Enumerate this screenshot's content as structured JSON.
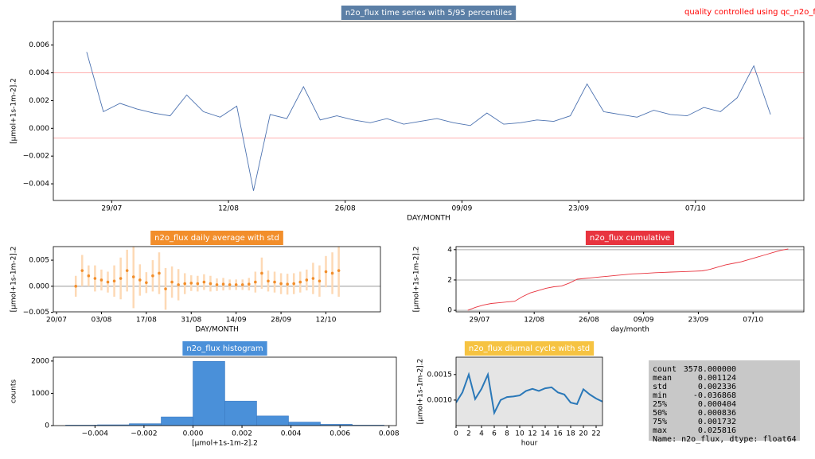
{
  "chart_data": [
    {
      "type": "line",
      "title": "n2o_flux time series with 5/95 percentiles",
      "title_color": "#5b7fa6",
      "annotation": "quality controlled using qc_n2o_fl",
      "annotation_color": "#ff0000",
      "xlabel": "DAY/MONTH",
      "ylabel": "[μmol+1s-1m-2].2",
      "color": "#4c72b0",
      "x": [
        "26/07",
        "28/07",
        "30/07",
        "01/08",
        "03/08",
        "05/08",
        "07/08",
        "09/08",
        "11/08",
        "13/08",
        "15/08",
        "17/08",
        "19/08",
        "21/08",
        "23/08",
        "25/08",
        "27/08",
        "29/08",
        "31/08",
        "02/09",
        "04/09",
        "06/09",
        "08/09",
        "10/09",
        "12/09",
        "14/09",
        "16/09",
        "18/09",
        "20/09",
        "22/09",
        "24/09",
        "26/09",
        "28/09",
        "30/09",
        "02/10",
        "04/10",
        "06/10",
        "08/10",
        "10/10",
        "12/10",
        "14/10",
        "16/10"
      ],
      "values": [
        0.0055,
        0.0012,
        0.0018,
        0.0014,
        0.0011,
        0.0009,
        0.0024,
        0.0012,
        0.0008,
        0.0016,
        -0.0045,
        0.001,
        0.0007,
        0.003,
        0.0006,
        0.0009,
        0.0006,
        0.0004,
        0.0007,
        0.0003,
        0.0005,
        0.0007,
        0.0004,
        0.0002,
        0.0011,
        0.0003,
        0.0004,
        0.0006,
        0.0005,
        0.0009,
        0.0032,
        0.0012,
        0.001,
        0.0008,
        0.0013,
        0.001,
        0.0009,
        0.0015,
        0.0012,
        0.0022,
        0.0045,
        0.001
      ],
      "xlim": [
        "22/07",
        "20/10"
      ],
      "xticks": [
        "29/07",
        "12/08",
        "26/08",
        "09/09",
        "23/09",
        "07/10"
      ],
      "ylim": [
        -0.0052,
        0.0077
      ],
      "yticks": [
        {
          "value": -0.004,
          "label": "−0.004"
        },
        {
          "value": -0.002,
          "label": "−0.002"
        },
        {
          "value": 0,
          "label": "0.000"
        },
        {
          "value": 0.002,
          "label": "0.002"
        },
        {
          "value": 0.004,
          "label": "0.004"
        },
        {
          "value": 0.006,
          "label": "0.006"
        }
      ],
      "hlines": [
        -0.0007,
        0.004
      ],
      "hline_color": "#ffb0b0",
      "grid": false
    },
    {
      "type": "errorbar",
      "title": "n2o_flux daily average with std",
      "title_color": "#f28e2b",
      "xlabel": "DAY/MONTH",
      "ylabel": "[μmol+1s-1m-2].2",
      "color": "#f28e2b",
      "error_color": "#fdd9b5",
      "x": [
        "26/07",
        "28/07",
        "30/07",
        "01/08",
        "03/08",
        "05/08",
        "07/08",
        "09/08",
        "11/08",
        "13/08",
        "15/08",
        "17/08",
        "19/08",
        "21/08",
        "23/08",
        "25/08",
        "27/08",
        "29/08",
        "31/08",
        "02/09",
        "04/09",
        "06/09",
        "08/09",
        "10/09",
        "12/09",
        "14/09",
        "16/09",
        "18/09",
        "20/09",
        "22/09",
        "24/09",
        "26/09",
        "28/09",
        "30/09",
        "02/10",
        "04/10",
        "06/10",
        "08/10",
        "10/10",
        "12/10",
        "14/10",
        "16/10"
      ],
      "values": [
        0.0,
        0.003,
        0.002,
        0.0015,
        0.0012,
        0.0008,
        0.001,
        0.0015,
        0.003,
        0.0018,
        0.0012,
        0.0007,
        0.002,
        0.0025,
        -0.0005,
        0.0008,
        0.0003,
        0.0005,
        0.0006,
        0.0005,
        0.0008,
        0.0005,
        0.0003,
        0.0004,
        0.0003,
        0.0003,
        0.0003,
        0.0004,
        0.0008,
        0.0025,
        0.001,
        0.0008,
        0.0005,
        0.0004,
        0.0005,
        0.0008,
        0.0012,
        0.0015,
        0.001,
        0.0028,
        0.0025,
        0.003
      ],
      "errors": [
        0.002,
        0.003,
        0.002,
        0.0025,
        0.002,
        0.002,
        0.003,
        0.004,
        0.004,
        0.006,
        0.003,
        0.002,
        0.003,
        0.004,
        0.004,
        0.003,
        0.003,
        0.002,
        0.0015,
        0.0015,
        0.0015,
        0.0015,
        0.0012,
        0.0012,
        0.001,
        0.001,
        0.001,
        0.0012,
        0.002,
        0.003,
        0.002,
        0.002,
        0.002,
        0.002,
        0.002,
        0.002,
        0.002,
        0.003,
        0.003,
        0.003,
        0.004,
        0.005
      ],
      "xlim": [
        "19/07",
        "29/10"
      ],
      "xticks": [
        "20/07",
        "03/08",
        "17/08",
        "31/08",
        "14/09",
        "28/09",
        "12/10"
      ],
      "ylim": [
        -0.0049,
        0.0076
      ],
      "yticks": [
        {
          "value": -0.005,
          "label": "−0.005"
        },
        {
          "value": 0,
          "label": "0.000"
        },
        {
          "value": 0.005,
          "label": "0.005"
        }
      ],
      "hlines": [
        0
      ],
      "hline_color": "#999999",
      "grid": false
    },
    {
      "type": "line",
      "title": "n2o_flux cumulative",
      "title_color": "#e8343f",
      "xlabel": "day/month",
      "ylabel": "[μmol+1s-1m-2].2",
      "color": "#e8343f",
      "x": [
        "26/07",
        "28/07",
        "30/07",
        "01/08",
        "03/08",
        "05/08",
        "07/08",
        "09/08",
        "11/08",
        "13/08",
        "15/08",
        "17/08",
        "19/08",
        "21/08",
        "23/08",
        "25/08",
        "27/08",
        "29/08",
        "31/08",
        "02/09",
        "04/09",
        "06/09",
        "08/09",
        "10/09",
        "12/09",
        "14/09",
        "16/09",
        "18/09",
        "20/09",
        "22/09",
        "24/09",
        "26/09",
        "28/09",
        "30/09",
        "02/10",
        "04/10",
        "06/10",
        "08/10",
        "10/10",
        "12/10",
        "14/10",
        "16/10"
      ],
      "values": [
        0,
        0.2,
        0.35,
        0.45,
        0.5,
        0.55,
        0.6,
        0.9,
        1.15,
        1.3,
        1.45,
        1.55,
        1.6,
        1.8,
        2.05,
        2.1,
        2.15,
        2.2,
        2.25,
        2.3,
        2.35,
        2.4,
        2.42,
        2.45,
        2.48,
        2.5,
        2.52,
        2.54,
        2.56,
        2.58,
        2.6,
        2.7,
        2.85,
        3.0,
        3.1,
        3.2,
        3.35,
        3.5,
        3.65,
        3.8,
        3.95,
        4.05
      ],
      "xlim": [
        "23/07",
        "20/10"
      ],
      "xticks": [
        "29/07",
        "12/08",
        "26/08",
        "09/09",
        "23/09",
        "07/10"
      ],
      "ylim": [
        -0.1,
        4.2
      ],
      "yticks": [
        0,
        2,
        4
      ],
      "grid": true
    },
    {
      "type": "histogram",
      "title": "n2o_flux histogram",
      "title_color": "#4a90d9",
      "xlabel": "[μmol+1s-1m-2].2",
      "ylabel": "counts",
      "color": "#4a90d9",
      "bins": [
        -0.0052,
        -0.0039,
        -0.0026,
        -0.0013,
        0.0,
        0.0013,
        0.0026,
        0.0039,
        0.0052,
        0.0065,
        0.0078
      ],
      "values": [
        15,
        25,
        60,
        270,
        1990,
        760,
        300,
        110,
        40,
        15
      ],
      "xlim": [
        -0.0057,
        0.0083
      ],
      "xticks": [
        {
          "value": -0.004,
          "label": "−0.004"
        },
        {
          "value": -0.002,
          "label": "−0.002"
        },
        {
          "value": 0,
          "label": "0.000"
        },
        {
          "value": 0.002,
          "label": "0.002"
        },
        {
          "value": 0.004,
          "label": "0.004"
        },
        {
          "value": 0.006,
          "label": "0.006"
        },
        {
          "value": 0.008,
          "label": "0.008"
        }
      ],
      "ylim": [
        0,
        2120
      ],
      "yticks": [
        0,
        1000,
        2000
      ],
      "grid": false
    },
    {
      "type": "line",
      "title": "n2o_flux diurnal cycle with std",
      "title_color": "#f6c342",
      "xlabel": "hour",
      "ylabel": "[μmol+1s-1m-2].2",
      "color": "#2a78b8",
      "background": "#e5e5e5",
      "x": [
        0,
        1,
        2,
        3,
        4,
        5,
        6,
        7,
        8,
        9,
        10,
        11,
        12,
        13,
        14,
        15,
        16,
        17,
        18,
        19,
        20,
        21,
        22,
        23
      ],
      "values": [
        0.00095,
        0.00115,
        0.0015,
        0.00102,
        0.00122,
        0.0015,
        0.00075,
        0.001,
        0.00106,
        0.00107,
        0.00109,
        0.00118,
        0.00122,
        0.00118,
        0.00123,
        0.00125,
        0.00115,
        0.00111,
        0.00095,
        0.00092,
        0.00121,
        0.00111,
        0.00103,
        0.00097
      ],
      "xlim": [
        0,
        23
      ],
      "xticks": [
        0,
        2,
        4,
        6,
        8,
        10,
        12,
        14,
        16,
        18,
        20,
        22
      ],
      "ylim": [
        0.0005,
        0.00184
      ],
      "yticks": [
        {
          "value": 0.001,
          "label": "0.0010"
        },
        {
          "value": 0.0015,
          "label": "0.0015"
        }
      ],
      "grid": false
    }
  ],
  "stats": {
    "rows": [
      [
        "count",
        "3578.000000"
      ],
      [
        "mean",
        "0.001124"
      ],
      [
        "std",
        "0.002336"
      ],
      [
        "min",
        "-0.036868"
      ],
      [
        "25%",
        "0.000404"
      ],
      [
        "50%",
        "0.000836"
      ],
      [
        "75%",
        "0.001732"
      ],
      [
        "max",
        "0.025816"
      ]
    ],
    "footer": "Name: n2o_flux, dtype: float64"
  }
}
